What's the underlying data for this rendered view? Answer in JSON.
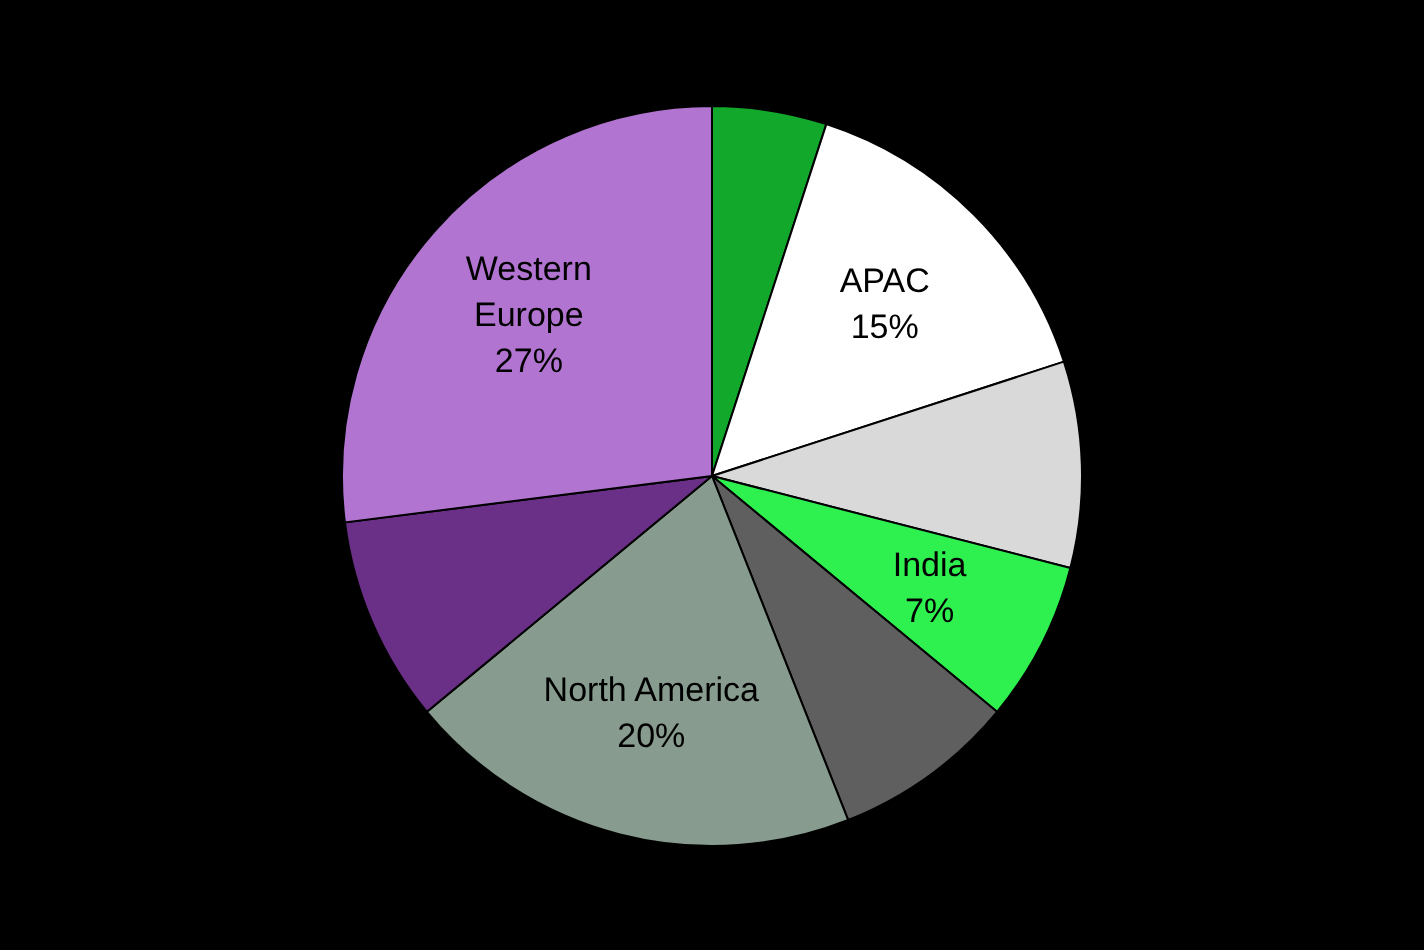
{
  "chart_data": {
    "type": "pie",
    "categories": [
      null,
      "APAC",
      null,
      "India",
      null,
      "North America",
      null,
      "Western Europe"
    ],
    "values": [
      5,
      15,
      9,
      7,
      8,
      20,
      9,
      27
    ],
    "value_labels": [
      null,
      "15%",
      null,
      "7%",
      null,
      "20%",
      null,
      "27%"
    ],
    "colors": [
      "#12a82c",
      "#ffffff",
      "#d9d9d9",
      "#2ef150",
      "#5f5f5f",
      "#879c8f",
      "#6a2f86",
      "#b174d0"
    ]
  }
}
